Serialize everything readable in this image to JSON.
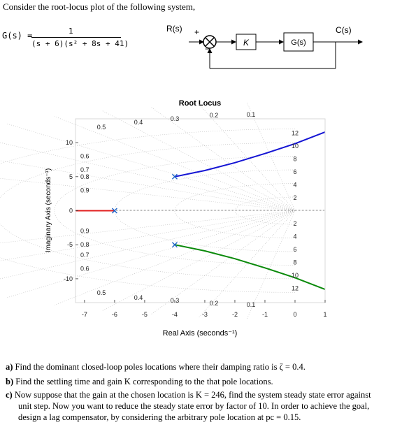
{
  "intro": "Consider the root-locus plot of the following system,",
  "transfer_function": {
    "lhs": "G(s) =",
    "numerator": "1",
    "denominator": "(s + 6)(s² + 8s + 41)"
  },
  "block_diagram": {
    "input": "R(s)",
    "plus": "+",
    "minus": "−",
    "gain": "K",
    "plant": "G(s)",
    "output": "C(s)"
  },
  "chart_data": {
    "type": "scatter",
    "title": "Root Locus",
    "xlabel": "Real Axis (seconds⁻¹)",
    "ylabel": "Imaginary Axis (seconds⁻¹)",
    "xlim": [
      -7.3,
      1
    ],
    "ylim": [
      -13.5,
      13.5
    ],
    "x_ticks": [
      "-7",
      "-6",
      "-5",
      "-4",
      "-3",
      "-2",
      "-1",
      "0",
      "1"
    ],
    "y_ticks": [
      "10",
      "5",
      "0",
      "-5",
      "-10"
    ],
    "open_loop_poles": [
      [
        -6,
        0
      ],
      [
        -4,
        5
      ],
      [
        -4,
        -5
      ]
    ],
    "series": [
      {
        "color": "#e21d1d",
        "points": [
          [
            -7.3,
            0
          ],
          [
            -6,
            0
          ]
        ]
      },
      {
        "color": "#1515d4",
        "points": [
          [
            -4,
            5
          ],
          [
            -3,
            5.9
          ],
          [
            -2,
            7.05
          ],
          [
            -1,
            8.4
          ],
          [
            0,
            9.85
          ],
          [
            1,
            11.55
          ]
        ]
      },
      {
        "color": "#0a8a0a",
        "points": [
          [
            -4,
            -5
          ],
          [
            -3,
            -5.9
          ],
          [
            -2,
            -7.05
          ],
          [
            -1,
            -8.4
          ],
          [
            0,
            -9.85
          ],
          [
            1,
            -11.55
          ]
        ]
      }
    ],
    "damping_labels": [
      "0.6",
      "0.7",
      "0.8",
      "0.9",
      "0.5",
      "0.4",
      "0.3",
      "0.2",
      "0.1"
    ],
    "natural_freq_labels": [
      "12",
      "10",
      "8",
      "6",
      "4",
      "2"
    ],
    "grid": true
  },
  "questions": {
    "a_label": "a)",
    "a_text": "Find the dominant closed-loop poles locations where their damping ratio is ζ = 0.4.",
    "b_label": "b)",
    "b_text": "Find the settling time and gain K corresponding to the that pole locations.",
    "c_label": "c)",
    "c_line1": "Now suppose that the gain at the chosen location is K = 246, find the system steady state error against",
    "c_line2": "unit step. Now you want to reduce the steady state error by factor of 10. In order to achieve the goal,",
    "c_line3": "design a lag compensator, by considering the arbitrary pole location at pc = 0.15."
  }
}
